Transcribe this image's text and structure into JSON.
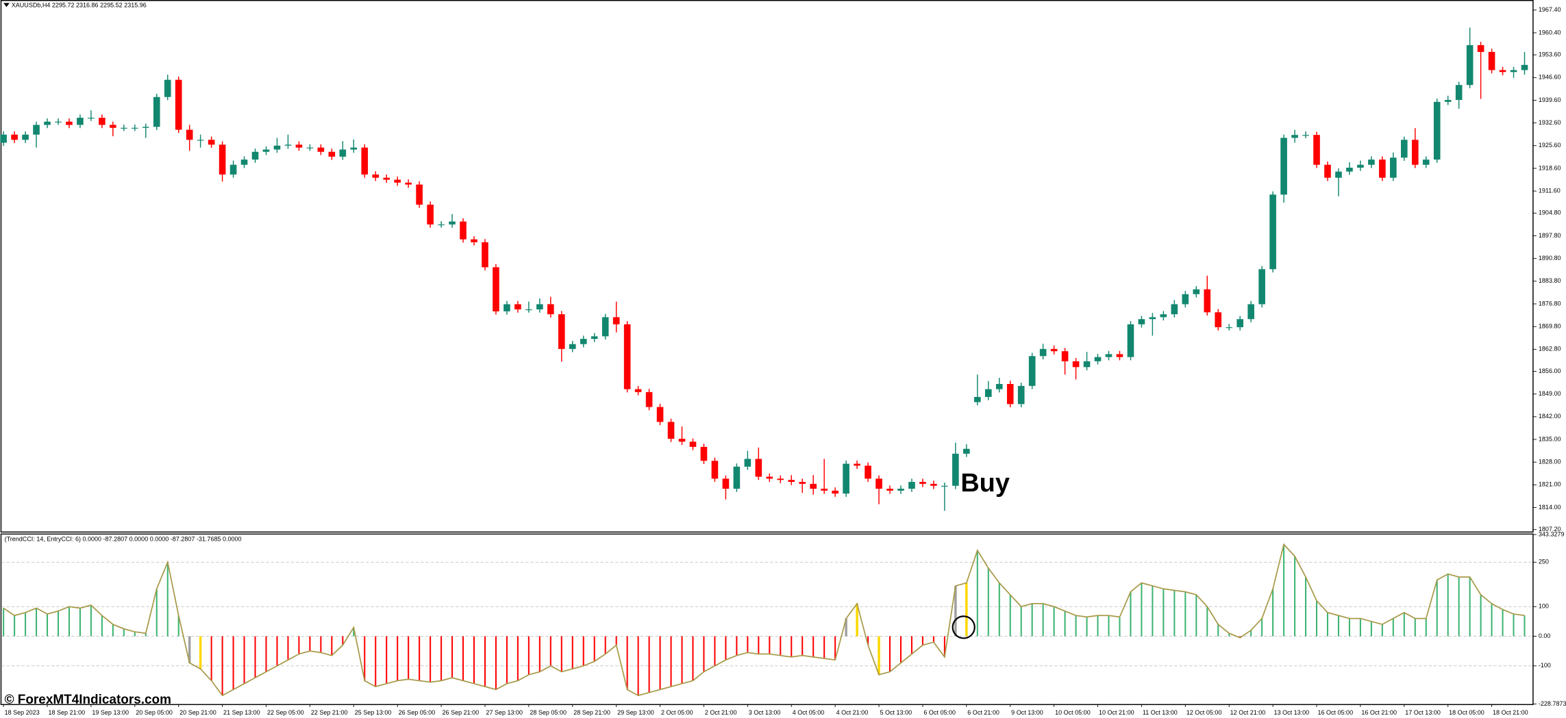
{
  "chart_data": [
    {
      "type": "candlestick",
      "title": "XAUUSDb,H4  2295.72 2316.86 2295.52 2315.96",
      "annotation": "Buy",
      "up_color": "#12876f",
      "down_color": "#ff0000",
      "open": [
        1926.5,
        1929.0,
        1927.4,
        1929.0,
        1932.0,
        1933.0,
        1933.0,
        1932.0,
        1934.2,
        1934.2,
        1932.0,
        1931.1,
        1931.1,
        1931.1,
        1931.4,
        1940.6,
        1945.9,
        1930.5,
        1927.4,
        1927.4,
        1925.9,
        1916.7,
        1919.7,
        1921.3,
        1923.7,
        1924.4,
        1925.6,
        1925.9,
        1925.0,
        1925.0,
        1923.7,
        1922.2,
        1924.4,
        1925.0,
        1916.7,
        1915.7,
        1915.1,
        1914.2,
        1913.6,
        1907.4,
        1901.3,
        1901.3,
        1902.2,
        1896.7,
        1895.8,
        1888.1,
        1874.5,
        1876.7,
        1875.1,
        1875.1,
        1876.7,
        1873.6,
        1862.9,
        1864.4,
        1866.0,
        1866.8,
        1872.7,
        1870.5,
        1850.5,
        1849.6,
        1845.0,
        1840.4,
        1835.2,
        1834.3,
        1832.7,
        1828.4,
        1822.9,
        1819.8,
        1826.6,
        1829.0,
        1823.5,
        1822.9,
        1822.5,
        1821.9,
        1821.3,
        1819.8,
        1819.2,
        1818.3,
        1827.5,
        1826.9,
        1822.9,
        1819.8,
        1819.2,
        1819.8,
        1821.9,
        1821.3,
        1820.7,
        1820.7,
        1830.6,
        1846.5,
        1848.1,
        1850.5,
        1852.1,
        1845.9,
        1851.5,
        1860.7,
        1862.9,
        1862.2,
        1859.1,
        1857.3,
        1859.1,
        1860.4,
        1861.3,
        1860.4,
        1870.5,
        1872.1,
        1872.7,
        1873.6,
        1876.7,
        1879.8,
        1881.3,
        1874.2,
        1869.6,
        1869.6,
        1872.1,
        1876.7,
        1887.5,
        1910.5,
        1928.0,
        1928.9,
        1928.9,
        1919.7,
        1915.7,
        1917.6,
        1918.8,
        1919.7,
        1921.3,
        1915.7,
        1921.9,
        1927.4,
        1919.7,
        1921.3,
        1939.1,
        1939.7,
        1944.3,
        1956.6,
        1954.5,
        1948.9,
        1948.3,
        1948.9
      ],
      "high": [
        1930.0,
        1930.0,
        1930.0,
        1933.0,
        1934.0,
        1934.0,
        1934.0,
        1935.2,
        1936.5,
        1935.2,
        1933.0,
        1932.1,
        1932.1,
        1932.4,
        1941.6,
        1947.5,
        1946.9,
        1932.0,
        1929.0,
        1928.4,
        1926.9,
        1921.0,
        1922.3,
        1924.7,
        1925.4,
        1928.0,
        1929.0,
        1926.9,
        1926.0,
        1926.0,
        1924.7,
        1927.0,
        1927.5,
        1926.0,
        1917.7,
        1916.7,
        1916.1,
        1915.2,
        1914.6,
        1908.4,
        1902.3,
        1904.5,
        1903.2,
        1897.7,
        1896.8,
        1889.1,
        1877.7,
        1877.7,
        1877.5,
        1878.5,
        1879.0,
        1874.6,
        1865.4,
        1867.0,
        1867.8,
        1873.7,
        1877.5,
        1871.5,
        1851.5,
        1850.6,
        1846.0,
        1841.4,
        1839.0,
        1835.3,
        1833.7,
        1829.4,
        1823.9,
        1827.6,
        1831.5,
        1832.5,
        1824.5,
        1823.9,
        1824.0,
        1822.9,
        1824.0,
        1829.0,
        1820.2,
        1828.5,
        1828.5,
        1827.9,
        1823.9,
        1820.8,
        1820.8,
        1822.9,
        1822.9,
        1822.3,
        1821.7,
        1834.0,
        1833.5,
        1855.0,
        1853.0,
        1854.0,
        1853.1,
        1852.5,
        1861.7,
        1864.5,
        1864.0,
        1863.2,
        1860.1,
        1862.0,
        1861.4,
        1862.3,
        1862.3,
        1871.5,
        1873.1,
        1874.0,
        1874.6,
        1878.0,
        1880.8,
        1882.3,
        1885.5,
        1875.2,
        1870.6,
        1873.1,
        1877.7,
        1888.5,
        1911.5,
        1929.0,
        1930.5,
        1930.0,
        1929.9,
        1920.7,
        1918.6,
        1920.5,
        1921.0,
        1922.3,
        1922.3,
        1923.5,
        1928.4,
        1931.0,
        1922.3,
        1940.1,
        1941.0,
        1945.3,
        1962.0,
        1957.6,
        1955.5,
        1949.9,
        1949.9,
        1954.5
      ],
      "low": [
        1925.5,
        1926.4,
        1926.4,
        1925.0,
        1931.0,
        1932.0,
        1931.0,
        1931.0,
        1933.2,
        1931.0,
        1928.5,
        1930.1,
        1930.1,
        1928.0,
        1930.4,
        1939.6,
        1929.5,
        1924.0,
        1925.0,
        1924.9,
        1914.5,
        1915.7,
        1918.7,
        1920.3,
        1922.7,
        1923.4,
        1924.6,
        1924.0,
        1924.0,
        1922.7,
        1921.2,
        1921.2,
        1923.4,
        1915.7,
        1914.7,
        1914.1,
        1913.2,
        1912.6,
        1906.4,
        1900.3,
        1900.3,
        1900.3,
        1895.7,
        1894.8,
        1887.1,
        1873.5,
        1873.5,
        1874.1,
        1874.1,
        1874.1,
        1872.6,
        1859.0,
        1861.9,
        1863.4,
        1865.0,
        1865.8,
        1868.0,
        1849.5,
        1848.6,
        1844.0,
        1839.4,
        1834.2,
        1833.3,
        1831.7,
        1827.4,
        1821.9,
        1816.5,
        1818.8,
        1825.6,
        1822.5,
        1821.9,
        1821.5,
        1820.9,
        1818.5,
        1818.0,
        1818.2,
        1817.3,
        1817.3,
        1825.9,
        1821.9,
        1815.0,
        1818.2,
        1818.2,
        1818.8,
        1820.3,
        1819.7,
        1813.0,
        1819.7,
        1829.6,
        1845.5,
        1847.1,
        1849.5,
        1844.9,
        1844.9,
        1850.5,
        1859.7,
        1861.2,
        1855.0,
        1853.5,
        1856.3,
        1858.1,
        1859.4,
        1859.4,
        1859.4,
        1869.5,
        1867.0,
        1871.7,
        1872.6,
        1875.7,
        1878.8,
        1873.2,
        1868.6,
        1868.6,
        1868.6,
        1871.1,
        1875.7,
        1886.5,
        1908.0,
        1926.5,
        1927.9,
        1918.7,
        1914.7,
        1910.0,
        1916.6,
        1917.8,
        1918.7,
        1914.7,
        1914.7,
        1920.9,
        1918.7,
        1918.7,
        1920.3,
        1938.1,
        1937.0,
        1943.3,
        1940.0,
        1947.9,
        1947.3,
        1946.5,
        1947.5
      ],
      "close": [
        1929.0,
        1927.4,
        1929.0,
        1932.0,
        1933.0,
        1933.0,
        1932.0,
        1934.2,
        1934.2,
        1932.0,
        1931.1,
        1931.1,
        1931.1,
        1931.4,
        1940.6,
        1945.9,
        1930.5,
        1927.4,
        1927.4,
        1925.9,
        1916.7,
        1919.7,
        1921.3,
        1923.7,
        1924.4,
        1925.6,
        1925.9,
        1925.0,
        1925.0,
        1923.7,
        1922.2,
        1924.4,
        1925.0,
        1916.7,
        1915.7,
        1915.1,
        1914.2,
        1913.6,
        1907.4,
        1901.3,
        1901.3,
        1902.2,
        1896.7,
        1895.8,
        1888.1,
        1874.5,
        1876.7,
        1875.1,
        1875.1,
        1876.7,
        1873.6,
        1862.9,
        1864.4,
        1866.0,
        1866.8,
        1872.7,
        1870.5,
        1850.5,
        1849.6,
        1845.0,
        1840.4,
        1835.2,
        1834.3,
        1832.7,
        1828.4,
        1822.9,
        1819.8,
        1826.6,
        1829.0,
        1823.5,
        1822.9,
        1822.5,
        1821.9,
        1821.3,
        1819.8,
        1819.2,
        1818.3,
        1827.5,
        1826.9,
        1822.9,
        1819.8,
        1819.2,
        1819.8,
        1821.9,
        1821.3,
        1820.7,
        1820.7,
        1830.6,
        1832.1,
        1848.1,
        1850.5,
        1852.1,
        1845.9,
        1851.5,
        1860.7,
        1862.9,
        1862.2,
        1859.1,
        1857.3,
        1859.1,
        1860.4,
        1861.3,
        1860.4,
        1870.5,
        1872.1,
        1872.7,
        1873.6,
        1876.7,
        1879.8,
        1881.3,
        1874.2,
        1869.6,
        1869.6,
        1872.1,
        1876.7,
        1887.5,
        1910.5,
        1928.0,
        1928.9,
        1928.9,
        1919.7,
        1915.7,
        1917.6,
        1918.8,
        1919.7,
        1921.3,
        1915.7,
        1921.9,
        1927.4,
        1919.7,
        1921.3,
        1939.1,
        1939.7,
        1944.3,
        1956.6,
        1954.5,
        1948.9,
        1948.3,
        1948.9,
        1950.5
      ],
      "ylim": [
        1806.6,
        1969.9
      ],
      "yticks": [
        {
          "value": 1967.4,
          "label": "1967.40"
        },
        {
          "value": 1960.4,
          "label": "1960.40"
        },
        {
          "value": 1953.6,
          "label": "1953.60"
        },
        {
          "value": 1946.6,
          "label": "1946.60"
        },
        {
          "value": 1939.6,
          "label": "1939.60"
        },
        {
          "value": 1932.6,
          "label": "1932.60"
        },
        {
          "value": 1925.6,
          "label": "1925.60"
        },
        {
          "value": 1918.6,
          "label": "1918.60"
        },
        {
          "value": 1911.6,
          "label": "1911.60"
        },
        {
          "value": 1904.8,
          "label": "1904.80"
        },
        {
          "value": 1897.8,
          "label": "1897.80"
        },
        {
          "value": 1890.8,
          "label": "1890.80"
        },
        {
          "value": 1883.8,
          "label": "1883.80"
        },
        {
          "value": 1876.8,
          "label": "1876.80"
        },
        {
          "value": 1869.8,
          "label": "1869.80"
        },
        {
          "value": 1862.8,
          "label": "1862.80"
        },
        {
          "value": 1856,
          "label": "1856.00"
        },
        {
          "value": 1849,
          "label": "1849.00"
        },
        {
          "value": 1842,
          "label": "1842.00"
        },
        {
          "value": 1835,
          "label": "1835.00"
        },
        {
          "value": 1828,
          "label": "1828.00"
        },
        {
          "value": 1821,
          "label": "1821.00"
        },
        {
          "value": 1814,
          "label": "1814.00"
        },
        {
          "value": 1807.2,
          "label": "1807.20"
        }
      ]
    },
    {
      "type": "bar",
      "title": "(TrendCCI: 14, EntryCCI: 6)  0.0000 -87.2807 0.0000 0.0000 -87.2807 -31.7685 0.0000",
      "positive_color": "#3cb371",
      "negative_color": "#ff0000",
      "gray_bars": [
        17,
        77,
        87
      ],
      "gray_color": "#a0a0a0",
      "gold_bars": [
        18,
        78,
        80,
        88
      ],
      "gold_color": "#ffd700",
      "line_color": "#a89a4a",
      "values": [
        95,
        70,
        80,
        95,
        75,
        85,
        100,
        95,
        105,
        70,
        40,
        25,
        15,
        10,
        160,
        250,
        70,
        -90,
        -110,
        -150,
        -200,
        -180,
        -160,
        -140,
        -120,
        -100,
        -80,
        -60,
        -50,
        -55,
        -65,
        -30,
        30,
        -150,
        -170,
        -160,
        -150,
        -145,
        -150,
        -155,
        -150,
        -140,
        -150,
        -160,
        -170,
        -180,
        -160,
        -150,
        -130,
        -120,
        -100,
        -120,
        -110,
        -100,
        -85,
        -60,
        -30,
        -180,
        -200,
        -190,
        -180,
        -170,
        -160,
        -150,
        -120,
        -100,
        -80,
        -65,
        -55,
        -60,
        -60,
        -65,
        -70,
        -65,
        -70,
        -75,
        -80,
        60,
        110,
        -30,
        -130,
        -120,
        -90,
        -60,
        -30,
        -20,
        -70,
        170,
        180,
        290,
        230,
        180,
        140,
        100,
        110,
        110,
        100,
        85,
        70,
        65,
        70,
        70,
        65,
        150,
        180,
        170,
        160,
        155,
        150,
        140,
        100,
        40,
        10,
        -5,
        20,
        60,
        160,
        310,
        270,
        200,
        120,
        80,
        70,
        60,
        60,
        50,
        40,
        60,
        80,
        60,
        60,
        190,
        210,
        200,
        200,
        140,
        110,
        90,
        75,
        70
      ],
      "ylim": [
        -228.7873,
        343.3279
      ],
      "yticks": [
        343.3279,
        250,
        100,
        {
          "value": 0,
          "label": "0.00"
        },
        -100,
        -228.7873
      ],
      "xtick_labels": [
        "18 Sep 2023",
        "18 Sep 21:00",
        "19 Sep 13:00",
        "20 Sep 05:00",
        "20 Sep 21:00",
        "21 Sep 13:00",
        "22 Sep 05:00",
        "22 Sep 21:00",
        "25 Sep 13:00",
        "26 Sep 05:00",
        "26 Sep 21:00",
        "27 Sep 13:00",
        "28 Sep 05:00",
        "28 Sep 21:00",
        "29 Sep 13:00",
        "2 Oct 05:00",
        "2 Oct 21:00",
        "3 Oct 13:00",
        "4 Oct 05:00",
        "4 Oct 21:00",
        "5 Oct 13:00",
        "6 Oct 05:00",
        "6 Oct 21:00",
        "9 Oct 13:00",
        "10 Oct 05:00",
        "10 Oct 21:00",
        "11 Oct 13:00",
        "12 Oct 05:00",
        "12 Oct 21:00",
        "13 Oct 13:00",
        "16 Oct 05:00",
        "16 Oct 21:00",
        "17 Oct 13:00",
        "18 Oct 05:00",
        "18 Oct 21:00"
      ]
    }
  ],
  "watermark": "© ForexMT4Indicators.com"
}
